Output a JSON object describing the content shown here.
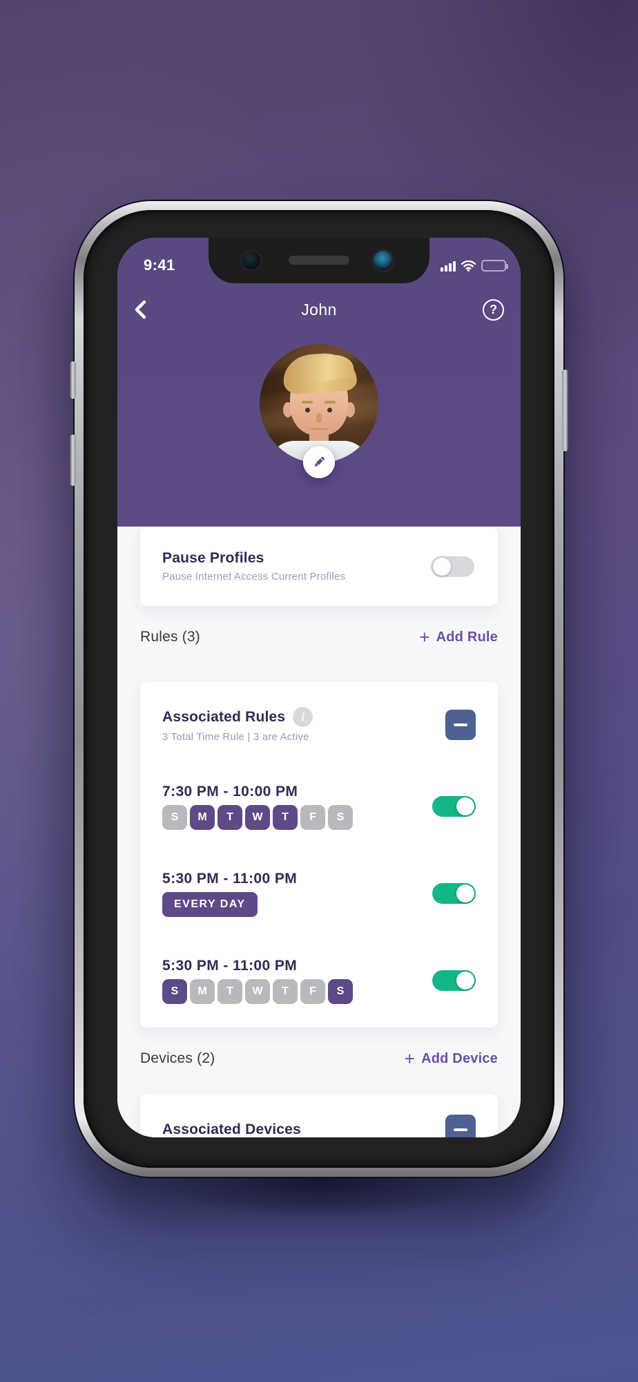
{
  "status_bar": {
    "time": "9:41"
  },
  "header": {
    "title": "John",
    "help_glyph": "?"
  },
  "pause_card": {
    "title": "Pause Profiles",
    "subtitle": "Pause Internet Access Current Profiles",
    "enabled": false
  },
  "rules": {
    "section_title": "Rules (3)",
    "add_icon": "+",
    "add_label": "Add Rule",
    "card": {
      "title": "Associated Rules",
      "info_glyph": "i",
      "subtitle": "3 Total Time Rule | 3 are Active",
      "items": [
        {
          "time": "7:30 PM - 10:00 PM",
          "days": [
            "S",
            "M",
            "T",
            "W",
            "T",
            "F",
            "S"
          ],
          "active_days": [
            false,
            true,
            true,
            true,
            true,
            false,
            false
          ],
          "enabled": true
        },
        {
          "time": "5:30 PM - 11:00 PM",
          "badge": "EVERY DAY",
          "enabled": true
        },
        {
          "time": "5:30 PM - 11:00 PM",
          "days": [
            "S",
            "M",
            "T",
            "W",
            "T",
            "F",
            "S"
          ],
          "active_days": [
            true,
            false,
            false,
            false,
            false,
            false,
            true
          ],
          "enabled": true
        }
      ]
    }
  },
  "devices": {
    "section_title": "Devices (2)",
    "add_icon": "+",
    "add_label": "Add Device",
    "card": {
      "title": "Associated Devices"
    }
  },
  "colors": {
    "app_purple": "#5d4b86",
    "add_link_purple": "#6b4fa2",
    "navy_text": "#2f2b56",
    "muted_text": "#9d99b2",
    "toggle_on_green": "#12b688",
    "toggle_off_gray": "#d9d8dd",
    "minus_button_blue": "#4e6191",
    "day_active_purple": "#5d4a87",
    "day_inactive_gray": "#b9b8bd",
    "page_background": "#f7f7f9"
  }
}
